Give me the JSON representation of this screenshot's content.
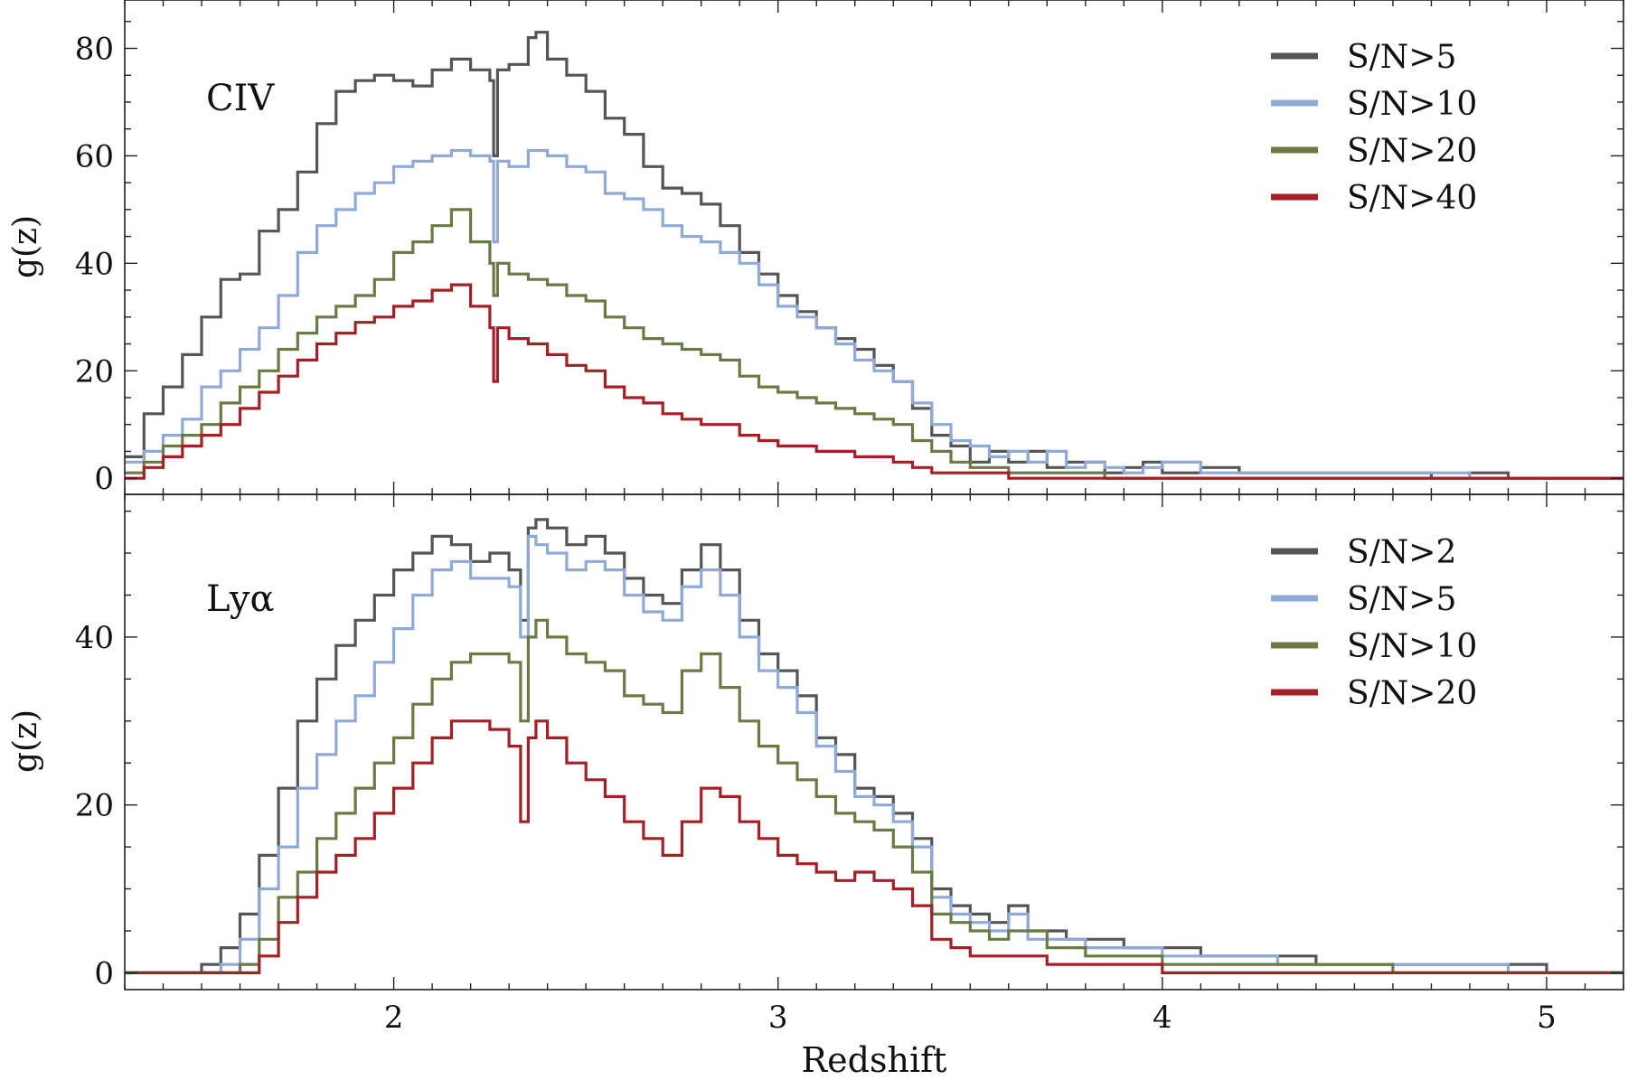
{
  "chart_data": [
    {
      "type": "line",
      "panel_label": "CIV",
      "xlabel": "",
      "ylabel": "g(z)",
      "xlim": [
        1.3,
        5.2
      ],
      "ylim": [
        -3,
        89
      ],
      "yticks": [
        0,
        20,
        40,
        60,
        80
      ],
      "xticks": [
        2,
        3,
        4,
        5
      ],
      "legend_position": "top-right",
      "grid": false,
      "series": [
        {
          "name": "S/N>5",
          "color": "#555555",
          "x": [
            1.3,
            1.35,
            1.4,
            1.45,
            1.5,
            1.55,
            1.6,
            1.65,
            1.7,
            1.75,
            1.8,
            1.85,
            1.9,
            1.95,
            2.0,
            2.05,
            2.1,
            2.15,
            2.2,
            2.25,
            2.26,
            2.27,
            2.3,
            2.35,
            2.37,
            2.4,
            2.45,
            2.5,
            2.55,
            2.6,
            2.65,
            2.7,
            2.75,
            2.8,
            2.85,
            2.9,
            2.95,
            3.0,
            3.05,
            3.1,
            3.15,
            3.2,
            3.25,
            3.3,
            3.35,
            3.4,
            3.45,
            3.5,
            3.55,
            3.6,
            3.65,
            3.7,
            3.75,
            3.8,
            3.85,
            3.9,
            3.95,
            4.0,
            4.1,
            4.2,
            4.3,
            4.4,
            4.5,
            4.6,
            4.7,
            4.8,
            4.9,
            5.0,
            5.1,
            5.2
          ],
          "y": [
            4,
            12,
            17,
            23,
            30,
            37,
            38,
            46,
            50,
            57,
            66,
            72,
            74,
            75,
            74,
            73,
            76,
            78,
            76,
            74,
            60,
            76,
            77,
            82,
            83,
            78,
            75,
            72,
            67,
            64,
            58,
            54,
            53,
            51,
            47,
            42,
            38,
            34,
            31,
            28,
            26,
            24,
            21,
            18,
            13,
            8,
            6,
            3,
            5,
            3,
            5,
            2,
            3,
            3,
            1,
            2,
            3,
            1,
            2,
            1,
            1,
            1,
            1,
            1,
            0,
            1,
            0,
            0,
            0,
            0
          ]
        },
        {
          "name": "S/N>10",
          "color": "#8faad6",
          "x": [
            1.3,
            1.35,
            1.4,
            1.45,
            1.5,
            1.55,
            1.6,
            1.65,
            1.7,
            1.75,
            1.8,
            1.85,
            1.9,
            1.95,
            2.0,
            2.05,
            2.1,
            2.15,
            2.2,
            2.25,
            2.26,
            2.27,
            2.3,
            2.35,
            2.4,
            2.45,
            2.5,
            2.55,
            2.6,
            2.65,
            2.7,
            2.75,
            2.8,
            2.85,
            2.9,
            2.95,
            3.0,
            3.05,
            3.1,
            3.15,
            3.2,
            3.25,
            3.3,
            3.35,
            3.4,
            3.45,
            3.5,
            3.55,
            3.6,
            3.65,
            3.7,
            3.75,
            3.8,
            3.85,
            3.9,
            3.95,
            4.0,
            4.1,
            4.2,
            4.3,
            4.4,
            4.5,
            4.6,
            4.7,
            4.8,
            4.9,
            5.0,
            5.1,
            5.2
          ],
          "y": [
            3,
            5,
            8,
            11,
            17,
            20,
            24,
            28,
            34,
            42,
            47,
            50,
            53,
            55,
            58,
            59,
            60,
            61,
            60,
            59,
            44,
            59,
            58,
            61,
            60,
            58,
            57,
            53,
            52,
            50,
            47,
            45,
            44,
            42,
            40,
            36,
            32,
            30,
            28,
            25,
            22,
            20,
            18,
            14,
            10,
            7,
            6,
            4,
            5,
            3,
            5,
            2,
            3,
            2,
            1,
            2,
            3,
            1,
            1,
            1,
            1,
            1,
            1,
            1,
            0,
            0,
            0,
            0,
            0
          ]
        },
        {
          "name": "S/N>20",
          "color": "#6b7a45",
          "x": [
            1.3,
            1.35,
            1.4,
            1.45,
            1.5,
            1.55,
            1.6,
            1.65,
            1.7,
            1.75,
            1.8,
            1.85,
            1.9,
            1.95,
            2.0,
            2.05,
            2.1,
            2.15,
            2.2,
            2.25,
            2.26,
            2.27,
            2.3,
            2.35,
            2.4,
            2.45,
            2.5,
            2.55,
            2.6,
            2.65,
            2.7,
            2.75,
            2.8,
            2.85,
            2.9,
            2.95,
            3.0,
            3.05,
            3.1,
            3.15,
            3.2,
            3.25,
            3.3,
            3.35,
            3.4,
            3.45,
            3.5,
            3.55,
            3.6,
            3.65,
            3.7,
            3.75,
            3.8,
            3.85,
            3.9,
            4.0,
            4.2,
            4.4,
            4.6,
            4.8,
            5.0,
            5.2
          ],
          "y": [
            1,
            3,
            6,
            8,
            10,
            14,
            17,
            20,
            24,
            27,
            30,
            32,
            34,
            37,
            42,
            44,
            47,
            50,
            44,
            40,
            34,
            40,
            38,
            37,
            36,
            34,
            33,
            30,
            28,
            26,
            25,
            24,
            23,
            22,
            19,
            17,
            16,
            15,
            14,
            13,
            12,
            11,
            10,
            7,
            5,
            3,
            2,
            2,
            1,
            1,
            1,
            1,
            1,
            0,
            0,
            0,
            0,
            0,
            0,
            0,
            0,
            0
          ]
        },
        {
          "name": "S/N>40",
          "color": "#a51f26",
          "x": [
            1.3,
            1.35,
            1.4,
            1.45,
            1.5,
            1.55,
            1.6,
            1.65,
            1.7,
            1.75,
            1.8,
            1.85,
            1.9,
            1.95,
            2.0,
            2.05,
            2.1,
            2.15,
            2.2,
            2.25,
            2.26,
            2.27,
            2.3,
            2.35,
            2.4,
            2.45,
            2.5,
            2.55,
            2.6,
            2.65,
            2.7,
            2.75,
            2.8,
            2.85,
            2.9,
            2.95,
            3.0,
            3.05,
            3.1,
            3.15,
            3.2,
            3.25,
            3.3,
            3.35,
            3.4,
            3.45,
            3.5,
            3.55,
            3.6,
            3.65,
            3.7,
            3.8,
            3.9,
            4.0,
            4.2,
            4.4,
            4.6,
            4.8,
            5.0,
            5.2
          ],
          "y": [
            0,
            2,
            4,
            6,
            8,
            10,
            13,
            16,
            19,
            22,
            25,
            27,
            29,
            30,
            32,
            33,
            35,
            36,
            32,
            28,
            18,
            28,
            26,
            25,
            23,
            21,
            20,
            17,
            15,
            14,
            12,
            11,
            10,
            10,
            8,
            7,
            6,
            6,
            5,
            5,
            4,
            4,
            3,
            2,
            1,
            1,
            1,
            1,
            0,
            0,
            0,
            0,
            0,
            0,
            0,
            0,
            0,
            0,
            0,
            0
          ]
        }
      ]
    },
    {
      "type": "line",
      "panel_label": "Lyα",
      "xlabel": "Redshift",
      "ylabel": "g(z)",
      "xlim": [
        1.3,
        5.2
      ],
      "ylim": [
        -2,
        57
      ],
      "yticks": [
        0,
        20,
        40
      ],
      "xticks": [
        2,
        3,
        4,
        5
      ],
      "legend_position": "top-right",
      "grid": false,
      "series": [
        {
          "name": "S/N>2",
          "color": "#555555",
          "x": [
            1.3,
            1.45,
            1.5,
            1.55,
            1.6,
            1.65,
            1.7,
            1.75,
            1.8,
            1.85,
            1.9,
            1.95,
            2.0,
            2.05,
            2.1,
            2.15,
            2.2,
            2.25,
            2.3,
            2.33,
            2.35,
            2.37,
            2.4,
            2.45,
            2.5,
            2.55,
            2.6,
            2.65,
            2.7,
            2.75,
            2.8,
            2.85,
            2.9,
            2.95,
            3.0,
            3.05,
            3.1,
            3.15,
            3.2,
            3.25,
            3.3,
            3.35,
            3.4,
            3.45,
            3.5,
            3.55,
            3.6,
            3.65,
            3.7,
            3.75,
            3.8,
            3.9,
            4.0,
            4.1,
            4.2,
            4.3,
            4.4,
            4.5,
            4.6,
            4.7,
            4.8,
            4.9,
            5.0,
            5.1,
            5.2
          ],
          "y": [
            0,
            0,
            1,
            3,
            7,
            14,
            22,
            30,
            35,
            39,
            42,
            45,
            48,
            50,
            52,
            51,
            49,
            50,
            48,
            42,
            53,
            54,
            53,
            51,
            52,
            50,
            47,
            45,
            44,
            48,
            51,
            48,
            42,
            38,
            36,
            33,
            28,
            26,
            22,
            21,
            19,
            16,
            10,
            8,
            7,
            6,
            8,
            5,
            5,
            4,
            4,
            3,
            3,
            2,
            2,
            2,
            1,
            1,
            1,
            1,
            1,
            1,
            0,
            0,
            0
          ]
        },
        {
          "name": "S/N>5",
          "color": "#8faad6",
          "x": [
            1.3,
            1.45,
            1.5,
            1.55,
            1.6,
            1.65,
            1.7,
            1.75,
            1.8,
            1.85,
            1.9,
            1.95,
            2.0,
            2.05,
            2.1,
            2.15,
            2.2,
            2.25,
            2.3,
            2.33,
            2.35,
            2.37,
            2.4,
            2.45,
            2.5,
            2.55,
            2.6,
            2.65,
            2.7,
            2.75,
            2.8,
            2.85,
            2.9,
            2.95,
            3.0,
            3.05,
            3.1,
            3.15,
            3.2,
            3.25,
            3.3,
            3.35,
            3.4,
            3.45,
            3.5,
            3.55,
            3.6,
            3.65,
            3.7,
            3.8,
            3.9,
            4.0,
            4.1,
            4.2,
            4.3,
            4.4,
            4.5,
            4.6,
            4.7,
            4.8,
            4.9,
            5.0,
            5.1,
            5.2
          ],
          "y": [
            0,
            0,
            0,
            1,
            4,
            10,
            15,
            22,
            26,
            30,
            33,
            37,
            41,
            45,
            48,
            49,
            47,
            47,
            46,
            40,
            52,
            51,
            50,
            48,
            49,
            48,
            45,
            43,
            42,
            46,
            48,
            45,
            40,
            36,
            34,
            31,
            27,
            24,
            21,
            20,
            18,
            15,
            9,
            7,
            6,
            5,
            7,
            4,
            4,
            3,
            3,
            2,
            2,
            2,
            1,
            1,
            1,
            1,
            1,
            1,
            0,
            0,
            0,
            0
          ]
        },
        {
          "name": "S/N>10",
          "color": "#6b7a45",
          "x": [
            1.3,
            1.45,
            1.5,
            1.55,
            1.6,
            1.65,
            1.7,
            1.75,
            1.8,
            1.85,
            1.9,
            1.95,
            2.0,
            2.05,
            2.1,
            2.15,
            2.2,
            2.25,
            2.3,
            2.33,
            2.35,
            2.37,
            2.4,
            2.45,
            2.5,
            2.55,
            2.6,
            2.65,
            2.7,
            2.75,
            2.8,
            2.85,
            2.9,
            2.95,
            3.0,
            3.05,
            3.1,
            3.15,
            3.2,
            3.25,
            3.3,
            3.35,
            3.4,
            3.45,
            3.5,
            3.55,
            3.6,
            3.7,
            3.8,
            3.9,
            4.0,
            4.2,
            4.4,
            4.6,
            4.8,
            5.0,
            5.2
          ],
          "y": [
            0,
            0,
            0,
            0,
            1,
            4,
            9,
            12,
            16,
            19,
            22,
            25,
            28,
            32,
            35,
            37,
            38,
            38,
            37,
            30,
            40,
            42,
            40,
            38,
            37,
            36,
            33,
            32,
            31,
            36,
            38,
            34,
            30,
            27,
            25,
            23,
            21,
            19,
            18,
            17,
            15,
            12,
            7,
            6,
            5,
            4,
            5,
            3,
            2,
            2,
            1,
            1,
            1,
            0,
            0,
            0,
            0
          ]
        },
        {
          "name": "S/N>20",
          "color": "#a51f26",
          "x": [
            1.3,
            1.45,
            1.5,
            1.55,
            1.6,
            1.65,
            1.7,
            1.75,
            1.8,
            1.85,
            1.9,
            1.95,
            2.0,
            2.05,
            2.1,
            2.15,
            2.2,
            2.25,
            2.3,
            2.33,
            2.35,
            2.37,
            2.4,
            2.45,
            2.5,
            2.55,
            2.6,
            2.65,
            2.7,
            2.75,
            2.8,
            2.85,
            2.9,
            2.95,
            3.0,
            3.05,
            3.1,
            3.15,
            3.2,
            3.25,
            3.3,
            3.35,
            3.4,
            3.45,
            3.5,
            3.55,
            3.6,
            3.7,
            3.8,
            3.9,
            4.0,
            4.2,
            4.4,
            4.6,
            4.8,
            5.0,
            5.2
          ],
          "y": [
            0,
            0,
            0,
            0,
            0,
            2,
            6,
            9,
            12,
            14,
            16,
            19,
            22,
            25,
            28,
            30,
            30,
            29,
            27,
            18,
            28,
            30,
            28,
            25,
            23,
            21,
            18,
            16,
            14,
            18,
            22,
            21,
            18,
            16,
            14,
            13,
            12,
            11,
            12,
            11,
            10,
            8,
            4,
            3,
            2,
            2,
            2,
            1,
            1,
            1,
            0,
            0,
            0,
            0,
            0,
            0,
            0
          ]
        }
      ]
    }
  ]
}
